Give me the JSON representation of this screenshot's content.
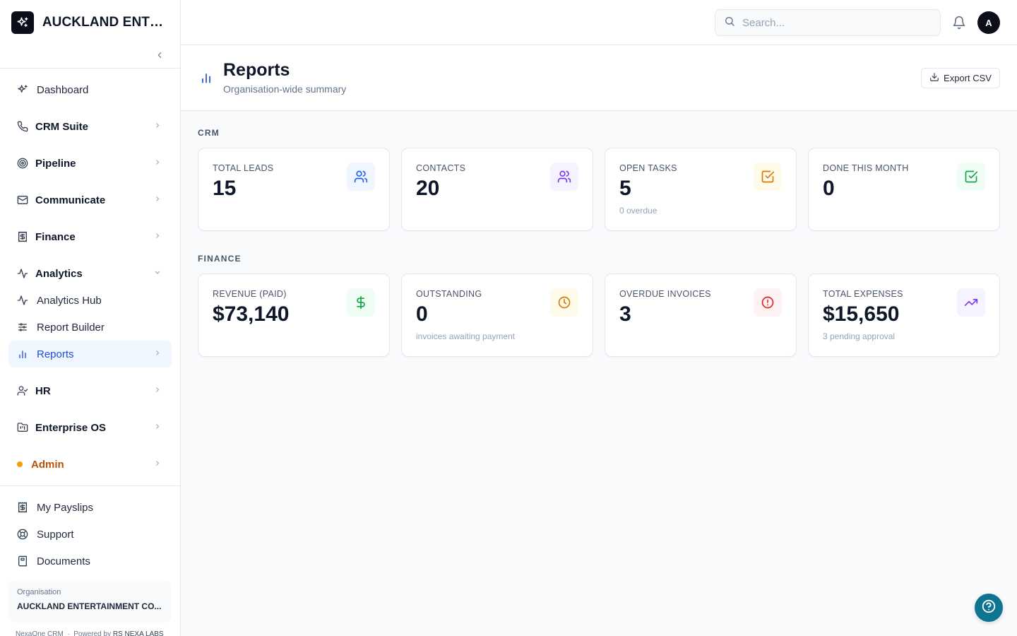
{
  "brand": {
    "name": "AUCKLAND ENTER..."
  },
  "sidebar": {
    "items": [
      {
        "label": "Dashboard"
      },
      {
        "label": "CRM Suite"
      },
      {
        "label": "Pipeline"
      },
      {
        "label": "Communicate"
      },
      {
        "label": "Finance"
      },
      {
        "label": "Analytics"
      },
      {
        "label": "Analytics Hub"
      },
      {
        "label": "Report Builder"
      },
      {
        "label": "Reports"
      },
      {
        "label": "HR"
      },
      {
        "label": "Enterprise OS"
      },
      {
        "label": "Admin"
      }
    ],
    "bottom_items": [
      {
        "label": "My Payslips"
      },
      {
        "label": "Support"
      },
      {
        "label": "Documents"
      }
    ],
    "org_label": "Organisation",
    "org_name": "AUCKLAND ENTERTAINMENT CO...",
    "footer_app": "NexaOne CRM",
    "footer_powered": "Powered by",
    "footer_company": "RS NEXA LABS"
  },
  "topbar": {
    "search_placeholder": "Search...",
    "avatar_initial": "A"
  },
  "page": {
    "title": "Reports",
    "subtitle": "Organisation-wide summary",
    "export_label": "Export CSV"
  },
  "sections": {
    "crm_label": "CRM",
    "finance_label": "FINANCE"
  },
  "crm_cards": [
    {
      "label": "TOTAL LEADS",
      "value": "15",
      "sub": ""
    },
    {
      "label": "CONTACTS",
      "value": "20",
      "sub": ""
    },
    {
      "label": "OPEN TASKS",
      "value": "5",
      "sub": "0 overdue"
    },
    {
      "label": "DONE THIS MONTH",
      "value": "0",
      "sub": ""
    }
  ],
  "finance_cards": [
    {
      "label": "REVENUE (PAID)",
      "value": "$73,140",
      "sub": ""
    },
    {
      "label": "OUTSTANDING",
      "value": "0",
      "sub": "invoices awaiting payment"
    },
    {
      "label": "OVERDUE INVOICES",
      "value": "3",
      "sub": ""
    },
    {
      "label": "TOTAL EXPENSES",
      "value": "$15,650",
      "sub": "3 pending approval"
    }
  ],
  "colors": {
    "accent": "#1d4ed8",
    "active_bg": "#eff6ff",
    "admin": "#b45309",
    "help_button": "#0e7490"
  }
}
